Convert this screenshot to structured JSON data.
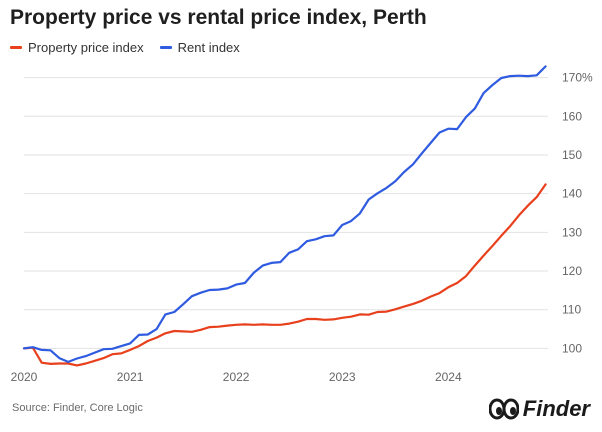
{
  "colors": {
    "property": "#e8401c",
    "rent": "#2f5be0",
    "grid": "#e2e2e2",
    "tick": "#666666"
  },
  "chart_data": {
    "type": "line",
    "title": "Property price vs rental price index, Perth",
    "xlabel": "",
    "ylabel": "",
    "ylim": [
      97,
      173
    ],
    "y_ticks": [
      100,
      110,
      120,
      130,
      140,
      150,
      160,
      170
    ],
    "y_tick_labels": [
      "100",
      "110",
      "120",
      "130",
      "140",
      "150",
      "160",
      "170%"
    ],
    "x_ticks": [
      2020,
      2021,
      2022,
      2023,
      2024
    ],
    "x_tick_labels": [
      "2020",
      "2021",
      "2022",
      "2023",
      "2024"
    ],
    "xlim": [
      2020.0,
      2024.94
    ],
    "grid": true,
    "legend_position": "top-left",
    "x": [
      2020.0,
      2020.083,
      2020.167,
      2020.25,
      2020.333,
      2020.417,
      2020.5,
      2020.583,
      2020.667,
      2020.75,
      2020.833,
      2020.917,
      2021.0,
      2021.083,
      2021.167,
      2021.25,
      2021.333,
      2021.417,
      2021.5,
      2021.583,
      2021.667,
      2021.75,
      2021.833,
      2021.917,
      2022.0,
      2022.083,
      2022.167,
      2022.25,
      2022.333,
      2022.417,
      2022.5,
      2022.583,
      2022.667,
      2022.75,
      2022.833,
      2022.917,
      2023.0,
      2023.083,
      2023.167,
      2023.25,
      2023.333,
      2023.417,
      2023.5,
      2023.583,
      2023.667,
      2023.75,
      2023.833,
      2023.917,
      2024.0,
      2024.083,
      2024.167,
      2024.25,
      2024.333,
      2024.417,
      2024.5,
      2024.583,
      2024.667,
      2024.75,
      2024.833,
      2024.917
    ],
    "series": [
      {
        "name": "Property price index",
        "color_key": "property",
        "values": [
          100.0,
          100.2,
          96.3,
          96.0,
          96.1,
          96.1,
          95.6,
          96.1,
          96.8,
          97.5,
          98.5,
          98.7,
          99.6,
          100.6,
          101.9,
          102.8,
          103.9,
          104.5,
          104.4,
          104.3,
          104.8,
          105.5,
          105.6,
          105.9,
          106.1,
          106.2,
          106.1,
          106.2,
          106.1,
          106.1,
          106.4,
          106.9,
          107.6,
          107.6,
          107.4,
          107.5,
          107.9,
          108.2,
          108.8,
          108.7,
          109.4,
          109.5,
          110.1,
          110.8,
          111.5,
          112.3,
          113.4,
          114.3,
          115.8,
          116.9,
          118.7,
          121.4,
          124.0,
          126.5,
          129.1,
          131.6,
          134.4,
          136.9,
          139.1,
          142.4
        ]
      },
      {
        "name": "Rent index",
        "color_key": "rent",
        "values": [
          100.0,
          100.3,
          99.6,
          99.5,
          97.5,
          96.5,
          97.4,
          98.0,
          98.9,
          99.8,
          99.9,
          100.6,
          101.3,
          103.5,
          103.6,
          105.0,
          108.8,
          109.4,
          111.4,
          113.5,
          114.4,
          115.1,
          115.2,
          115.5,
          116.5,
          116.9,
          119.6,
          121.4,
          122.1,
          122.3,
          124.7,
          125.6,
          127.7,
          128.2,
          129.0,
          129.2,
          131.9,
          132.9,
          134.9,
          138.5,
          140.1,
          141.5,
          143.2,
          145.6,
          147.6,
          150.4,
          153.1,
          155.8,
          156.8,
          156.7,
          159.8,
          162.0,
          166.0,
          168.1,
          169.9,
          170.4,
          170.5,
          170.4,
          170.6,
          172.9
        ]
      }
    ]
  },
  "footer": {
    "source": "Source: Finder, Core Logic",
    "brand": "Finder",
    "logo_icon": "finder-eyes-icon"
  }
}
